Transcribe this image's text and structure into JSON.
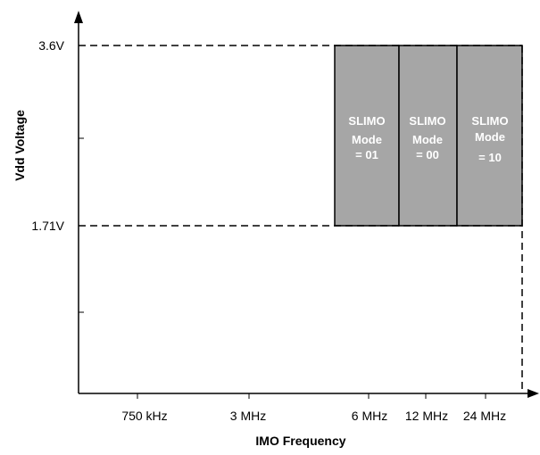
{
  "axes": {
    "x_title": "IMO  Frequency",
    "y_title": "Vdd Voltage"
  },
  "y_ticks": [
    "3.6V",
    "1.71V"
  ],
  "x_ticks": [
    "750 kHz",
    "3 MHz",
    "6 MHz",
    "12 MHz",
    "24 MHz"
  ],
  "regions": [
    {
      "lines": [
        "SLIMO",
        "Mode",
        "= 01"
      ]
    },
    {
      "lines": [
        "SLIMO",
        "Mode",
        "= 00"
      ]
    },
    {
      "lines": [
        "SLIMO",
        "Mode",
        "= 10"
      ]
    }
  ],
  "colors": {
    "region_fill": "#a6a6a6",
    "region_stroke": "#000000",
    "region_text": "#ffffff",
    "axis": "#000000"
  }
}
